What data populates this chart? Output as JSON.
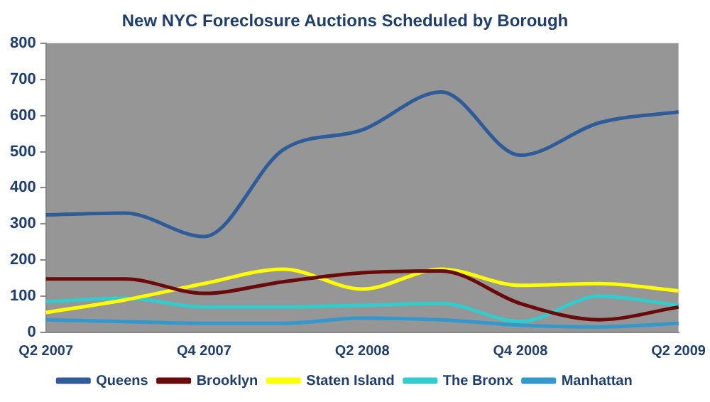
{
  "chart_data": {
    "type": "line",
    "title": "New NYC Foreclosure Auctions Scheduled by Borough",
    "categories": [
      "Q2 2007",
      null,
      "Q4 2007",
      null,
      "Q2 2008",
      null,
      "Q4 2008",
      null,
      "Q2 2009"
    ],
    "series": [
      {
        "name": "Queens",
        "color": "#2e5c99",
        "values": [
          325,
          330,
          265,
          505,
          560,
          665,
          490,
          580,
          610
        ]
      },
      {
        "name": "Brooklyn",
        "color": "#6b0a0a",
        "values": [
          148,
          148,
          108,
          140,
          165,
          170,
          80,
          35,
          70
        ]
      },
      {
        "name": "Staten Island",
        "color": "#ffff00",
        "values": [
          55,
          90,
          135,
          175,
          120,
          175,
          130,
          135,
          115
        ]
      },
      {
        "name": "The Bronx",
        "color": "#33cccc",
        "values": [
          85,
          95,
          70,
          70,
          75,
          80,
          30,
          100,
          75
        ]
      },
      {
        "name": "Manhattan",
        "color": "#3399cc",
        "values": [
          35,
          30,
          25,
          25,
          40,
          35,
          20,
          15,
          25
        ]
      }
    ],
    "ylim": [
      0,
      800
    ],
    "yticks": [
      0,
      100,
      200,
      300,
      400,
      500,
      600,
      700,
      800
    ],
    "grid": false,
    "legend": "bottom",
    "marker": "none",
    "line_style": "solid"
  }
}
